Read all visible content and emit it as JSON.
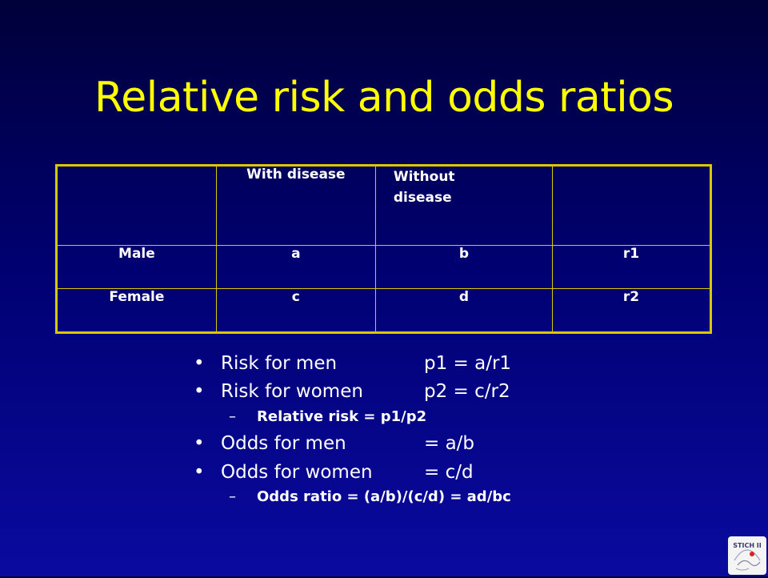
{
  "slide": {
    "title": "Relative risk and odds ratios"
  },
  "table": {
    "header": [
      "",
      "With disease",
      "Without disease",
      ""
    ],
    "header_without_line1": "Without",
    "header_without_line2": "disease",
    "rows": [
      [
        "Male",
        "a",
        "b",
        "r1"
      ],
      [
        "Female",
        "c",
        "d",
        "r2"
      ]
    ]
  },
  "bullets": [
    {
      "label": "Risk for men",
      "value": "p1 = a/r1"
    },
    {
      "label": "Risk for women",
      "value": "p2 = c/r2"
    },
    {
      "label": "Odds for men",
      "value": "= a/b"
    },
    {
      "label": "Odds for women",
      "value": "= c/d"
    }
  ],
  "sub_bullets": [
    "Relative risk = p1/p2",
    "Odds ratio = (a/b)/(c/d) = ad/bc"
  ],
  "colors": {
    "title": "#ffff00",
    "text": "#ffffff",
    "table_border": "#d8c800",
    "background_top": "#00003a",
    "background_bottom": "#0a0aa0"
  },
  "logo": {
    "icon": "stich-ii-logo-icon",
    "text": "STICH II"
  }
}
